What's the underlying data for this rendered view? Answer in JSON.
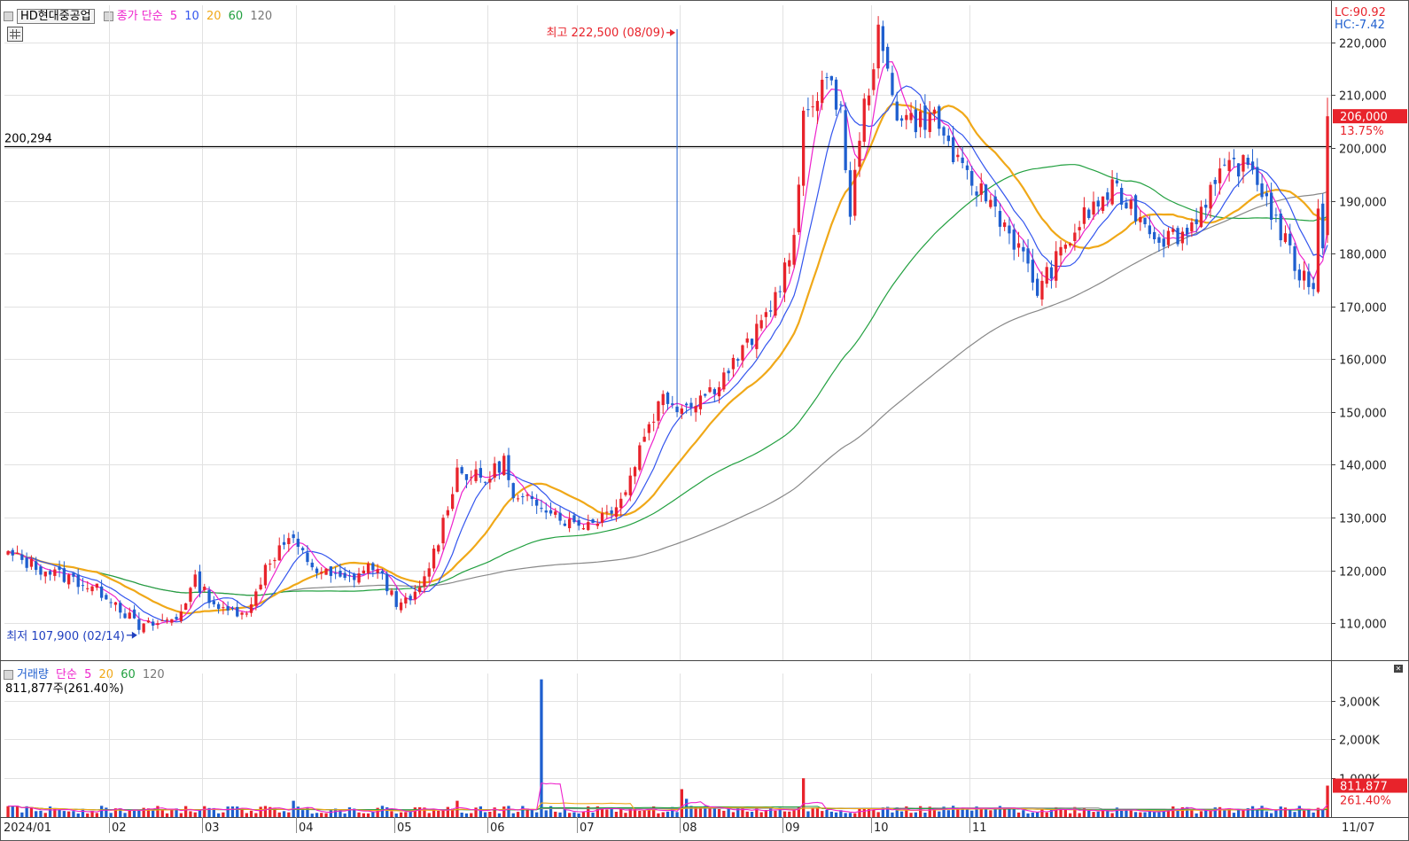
{
  "header": {
    "symbol": "HD현대중공업",
    "price_legend": {
      "label": "종가 단순",
      "periods": [
        "5",
        "10",
        "20",
        "60",
        "120"
      ]
    },
    "lc_readout": "LC:90.92",
    "hc_readout": "HC:-7.42"
  },
  "volume_header": {
    "label": "거래량",
    "ma_label": "단순",
    "periods": [
      "5",
      "20",
      "60",
      "120"
    ],
    "current": "811,877주(261.40%)"
  },
  "colors": {
    "up": "#e8232b",
    "down": "#1f5fcf",
    "ma5": "#ee22cc",
    "ma10": "#3355ee",
    "ma20": "#f0a818",
    "ma60": "#22a040",
    "ma120": "#888888"
  },
  "chart_data": [
    {
      "type": "candlestick",
      "title": "HD현대중공업",
      "y_ticks": [
        "220,000",
        "210,000",
        "200,000",
        "190,000",
        "180,000",
        "170,000",
        "160,000",
        "150,000",
        "140,000",
        "130,000",
        "120,000",
        "110,000"
      ],
      "ylim": [
        103000,
        227000
      ],
      "x_labels": [
        "2024/01",
        "02",
        "03",
        "04",
        "05",
        "06",
        "07",
        "08",
        "09",
        "10",
        "11"
      ],
      "last_date_label": "11/07",
      "current_price": "206,000",
      "current_change": "13.75%",
      "ref_line": {
        "value": 200294,
        "label": "200,294"
      },
      "annotations": [
        {
          "text": "최고 222,500 (08/09)",
          "value": 222500,
          "date_index": 143
        },
        {
          "text": "최저 107,900 (02/14)",
          "value": 107900,
          "date_index": 28
        }
      ],
      "series": [
        {
          "name": "5",
          "type": "ma"
        },
        {
          "name": "10",
          "type": "ma"
        },
        {
          "name": "20",
          "type": "ma"
        },
        {
          "name": "60",
          "type": "ma"
        },
        {
          "name": "120",
          "type": "ma"
        }
      ],
      "keypoints": [
        [
          0,
          123000
        ],
        [
          8,
          120000
        ],
        [
          15,
          118000
        ],
        [
          22,
          115000
        ],
        [
          28,
          109000
        ],
        [
          36,
          111000
        ],
        [
          40,
          118000
        ],
        [
          46,
          112000
        ],
        [
          52,
          113000
        ],
        [
          55,
          121000
        ],
        [
          60,
          126000
        ],
        [
          66,
          120000
        ],
        [
          72,
          118000
        ],
        [
          78,
          121000
        ],
        [
          84,
          113000
        ],
        [
          88,
          116000
        ],
        [
          92,
          126000
        ],
        [
          96,
          139000
        ],
        [
          102,
          137000
        ],
        [
          106,
          141000
        ],
        [
          108,
          133000
        ],
        [
          114,
          133000
        ],
        [
          120,
          129000
        ],
        [
          124,
          129000
        ],
        [
          128,
          131000
        ],
        [
          132,
          135000
        ],
        [
          136,
          146000
        ],
        [
          140,
          153000
        ],
        [
          144,
          151000
        ],
        [
          150,
          154000
        ],
        [
          154,
          158000
        ],
        [
          160,
          165000
        ],
        [
          164,
          172000
        ],
        [
          168,
          182000
        ],
        [
          170,
          205000
        ],
        [
          174,
          213000
        ],
        [
          178,
          208000
        ],
        [
          180,
          186000
        ],
        [
          182,
          203000
        ],
        [
          186,
          221000
        ],
        [
          190,
          207000
        ],
        [
          194,
          205000
        ],
        [
          198,
          206000
        ],
        [
          204,
          195000
        ],
        [
          210,
          190000
        ],
        [
          216,
          181000
        ],
        [
          220,
          173000
        ],
        [
          225,
          180000
        ],
        [
          230,
          187000
        ],
        [
          236,
          192000
        ],
        [
          240,
          189000
        ],
        [
          246,
          183000
        ],
        [
          252,
          184000
        ],
        [
          257,
          192000
        ],
        [
          262,
          197000
        ],
        [
          266,
          196000
        ],
        [
          270,
          188000
        ],
        [
          276,
          176000
        ],
        [
          279,
          174000
        ],
        [
          281,
          206000
        ]
      ]
    },
    {
      "type": "bar",
      "title": "거래량",
      "y_ticks": [
        "3,000K",
        "2,000K",
        "1,000K"
      ],
      "ylim": [
        0,
        3700
      ],
      "current_volume": "811,877",
      "current_ratio": "261.40%",
      "spikes": [
        {
          "date_index": 114,
          "value": 3550
        },
        {
          "date_index": 170,
          "value": 1000
        },
        {
          "date_index": 144,
          "value": 720
        },
        {
          "date_index": 61,
          "value": 420
        },
        {
          "date_index": 96,
          "value": 420
        },
        {
          "date_index": 145,
          "value": 470
        },
        {
          "date_index": 282,
          "value": 810
        }
      ]
    }
  ]
}
